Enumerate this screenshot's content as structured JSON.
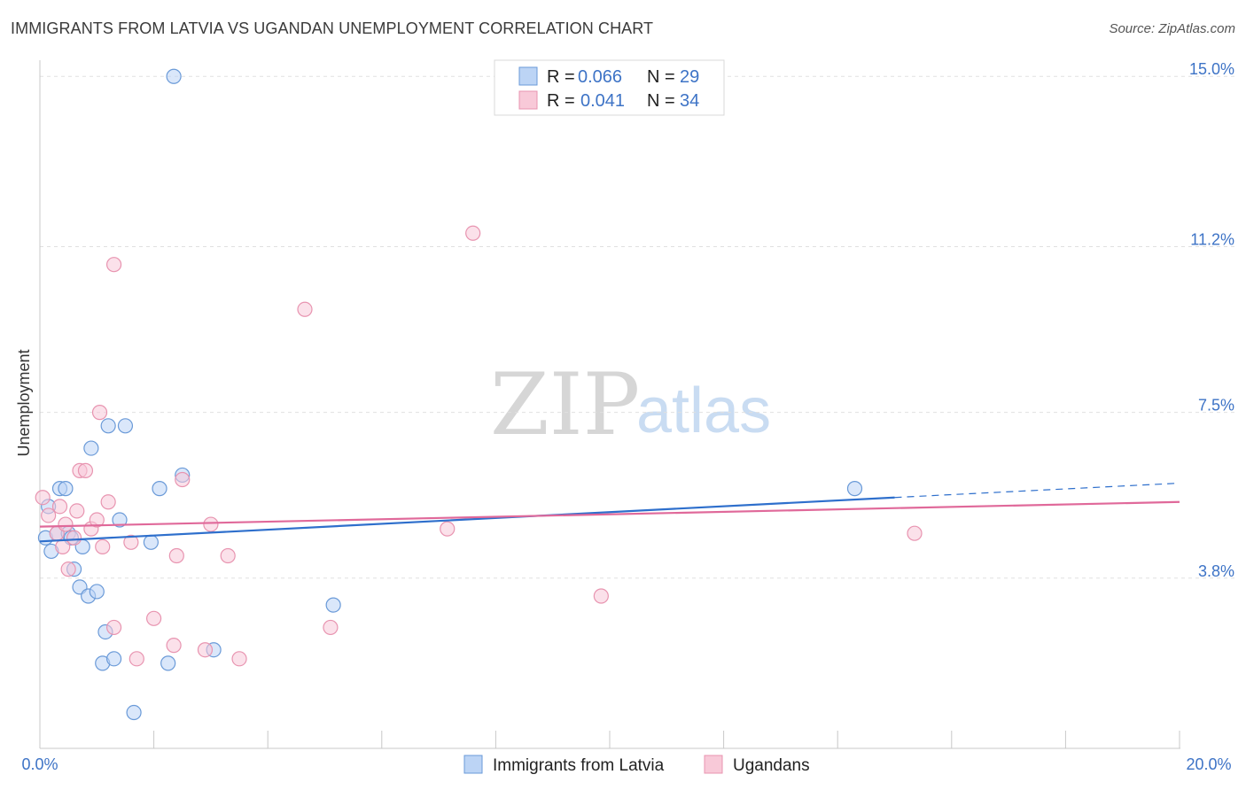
{
  "header": {
    "title": "IMMIGRANTS FROM LATVIA VS UGANDAN UNEMPLOYMENT CORRELATION CHART",
    "source": "Source: ZipAtlas.com"
  },
  "watermark": {
    "zip": "ZIP",
    "atlas": "atlas"
  },
  "colors": {
    "blue_fill": "#bcd4f5",
    "blue_stroke": "#6a9ad8",
    "blue_line": "#2e6fcc",
    "pink_fill": "#f8c9d8",
    "pink_stroke": "#e894b0",
    "pink_line": "#e0699a",
    "accent_text": "#3d73c6"
  },
  "legend_box": {
    "row1": {
      "r_label": "R = ",
      "r_value": "0.066",
      "n_label": "N = ",
      "n_value": "29"
    },
    "row2": {
      "r_label": "R = ",
      "r_value": "0.041",
      "n_label": "N = ",
      "n_value": "34"
    }
  },
  "bottom_legend": {
    "series1": "Immigrants from Latvia",
    "series2": "Ugandans"
  },
  "chart_data": {
    "type": "scatter",
    "title": "IMMIGRANTS FROM LATVIA VS UGANDAN UNEMPLOYMENT CORRELATION CHART",
    "ylabel": "Unemployment",
    "xlabel": "",
    "xlim": [
      0,
      20
    ],
    "ylim": [
      0,
      15.4
    ],
    "y_ticks": [
      {
        "value": 3.8,
        "label": "3.8%"
      },
      {
        "value": 7.5,
        "label": "7.5%"
      },
      {
        "value": 11.2,
        "label": "11.2%"
      },
      {
        "value": 15.0,
        "label": "15.0%"
      }
    ],
    "x_tick_labels": {
      "min": "0.0%",
      "max": "20.0%"
    },
    "x_minor_ticks": [
      2,
      4,
      6,
      8,
      10,
      12,
      14,
      16,
      18,
      20
    ],
    "grid": true,
    "legend_position": "top-center",
    "series": [
      {
        "name": "Immigrants from Latvia",
        "color": "blue",
        "points": [
          [
            0.1,
            4.7
          ],
          [
            0.15,
            5.4
          ],
          [
            0.2,
            4.4
          ],
          [
            0.3,
            4.8
          ],
          [
            0.35,
            5.8
          ],
          [
            0.45,
            5.8
          ],
          [
            0.5,
            4.8
          ],
          [
            0.55,
            4.7
          ],
          [
            0.6,
            4.0
          ],
          [
            0.7,
            3.6
          ],
          [
            0.75,
            4.5
          ],
          [
            0.85,
            3.4
          ],
          [
            0.9,
            6.7
          ],
          [
            1.0,
            3.5
          ],
          [
            1.1,
            1.9
          ],
          [
            1.15,
            2.6
          ],
          [
            1.2,
            7.2
          ],
          [
            1.3,
            2.0
          ],
          [
            1.4,
            5.1
          ],
          [
            1.5,
            7.2
          ],
          [
            1.65,
            0.8
          ],
          [
            1.95,
            4.6
          ],
          [
            2.1,
            5.8
          ],
          [
            2.25,
            1.9
          ],
          [
            2.35,
            15.0
          ],
          [
            2.5,
            6.1
          ],
          [
            3.05,
            2.2
          ],
          [
            5.15,
            3.2
          ],
          [
            14.3,
            5.8
          ]
        ],
        "trend": {
          "x0": 0,
          "y0": 4.62,
          "x1": 15.0,
          "y1": 5.6,
          "dash_to_x": 20,
          "dash_to_y": 5.92
        }
      },
      {
        "name": "Ugandans",
        "color": "pink",
        "points": [
          [
            0.05,
            5.6
          ],
          [
            0.15,
            5.2
          ],
          [
            0.3,
            4.8
          ],
          [
            0.35,
            5.4
          ],
          [
            0.4,
            4.5
          ],
          [
            0.45,
            5.0
          ],
          [
            0.5,
            4.0
          ],
          [
            0.6,
            4.7
          ],
          [
            0.65,
            5.3
          ],
          [
            0.7,
            6.2
          ],
          [
            0.8,
            6.2
          ],
          [
            0.9,
            4.9
          ],
          [
            1.0,
            5.1
          ],
          [
            1.05,
            7.5
          ],
          [
            1.1,
            4.5
          ],
          [
            1.2,
            5.5
          ],
          [
            1.3,
            2.7
          ],
          [
            1.3,
            10.8
          ],
          [
            1.6,
            4.6
          ],
          [
            1.7,
            2.0
          ],
          [
            2.0,
            2.9
          ],
          [
            2.35,
            2.3
          ],
          [
            2.4,
            4.3
          ],
          [
            2.5,
            6.0
          ],
          [
            2.9,
            2.2
          ],
          [
            3.0,
            5.0
          ],
          [
            3.3,
            4.3
          ],
          [
            3.5,
            2.0
          ],
          [
            4.65,
            9.8
          ],
          [
            5.1,
            2.7
          ],
          [
            7.15,
            4.9
          ],
          [
            7.6,
            11.5
          ],
          [
            9.85,
            3.4
          ],
          [
            15.35,
            4.8
          ]
        ],
        "trend": {
          "x0": 0,
          "y0": 4.95,
          "x1": 20,
          "y1": 5.5
        }
      }
    ]
  }
}
